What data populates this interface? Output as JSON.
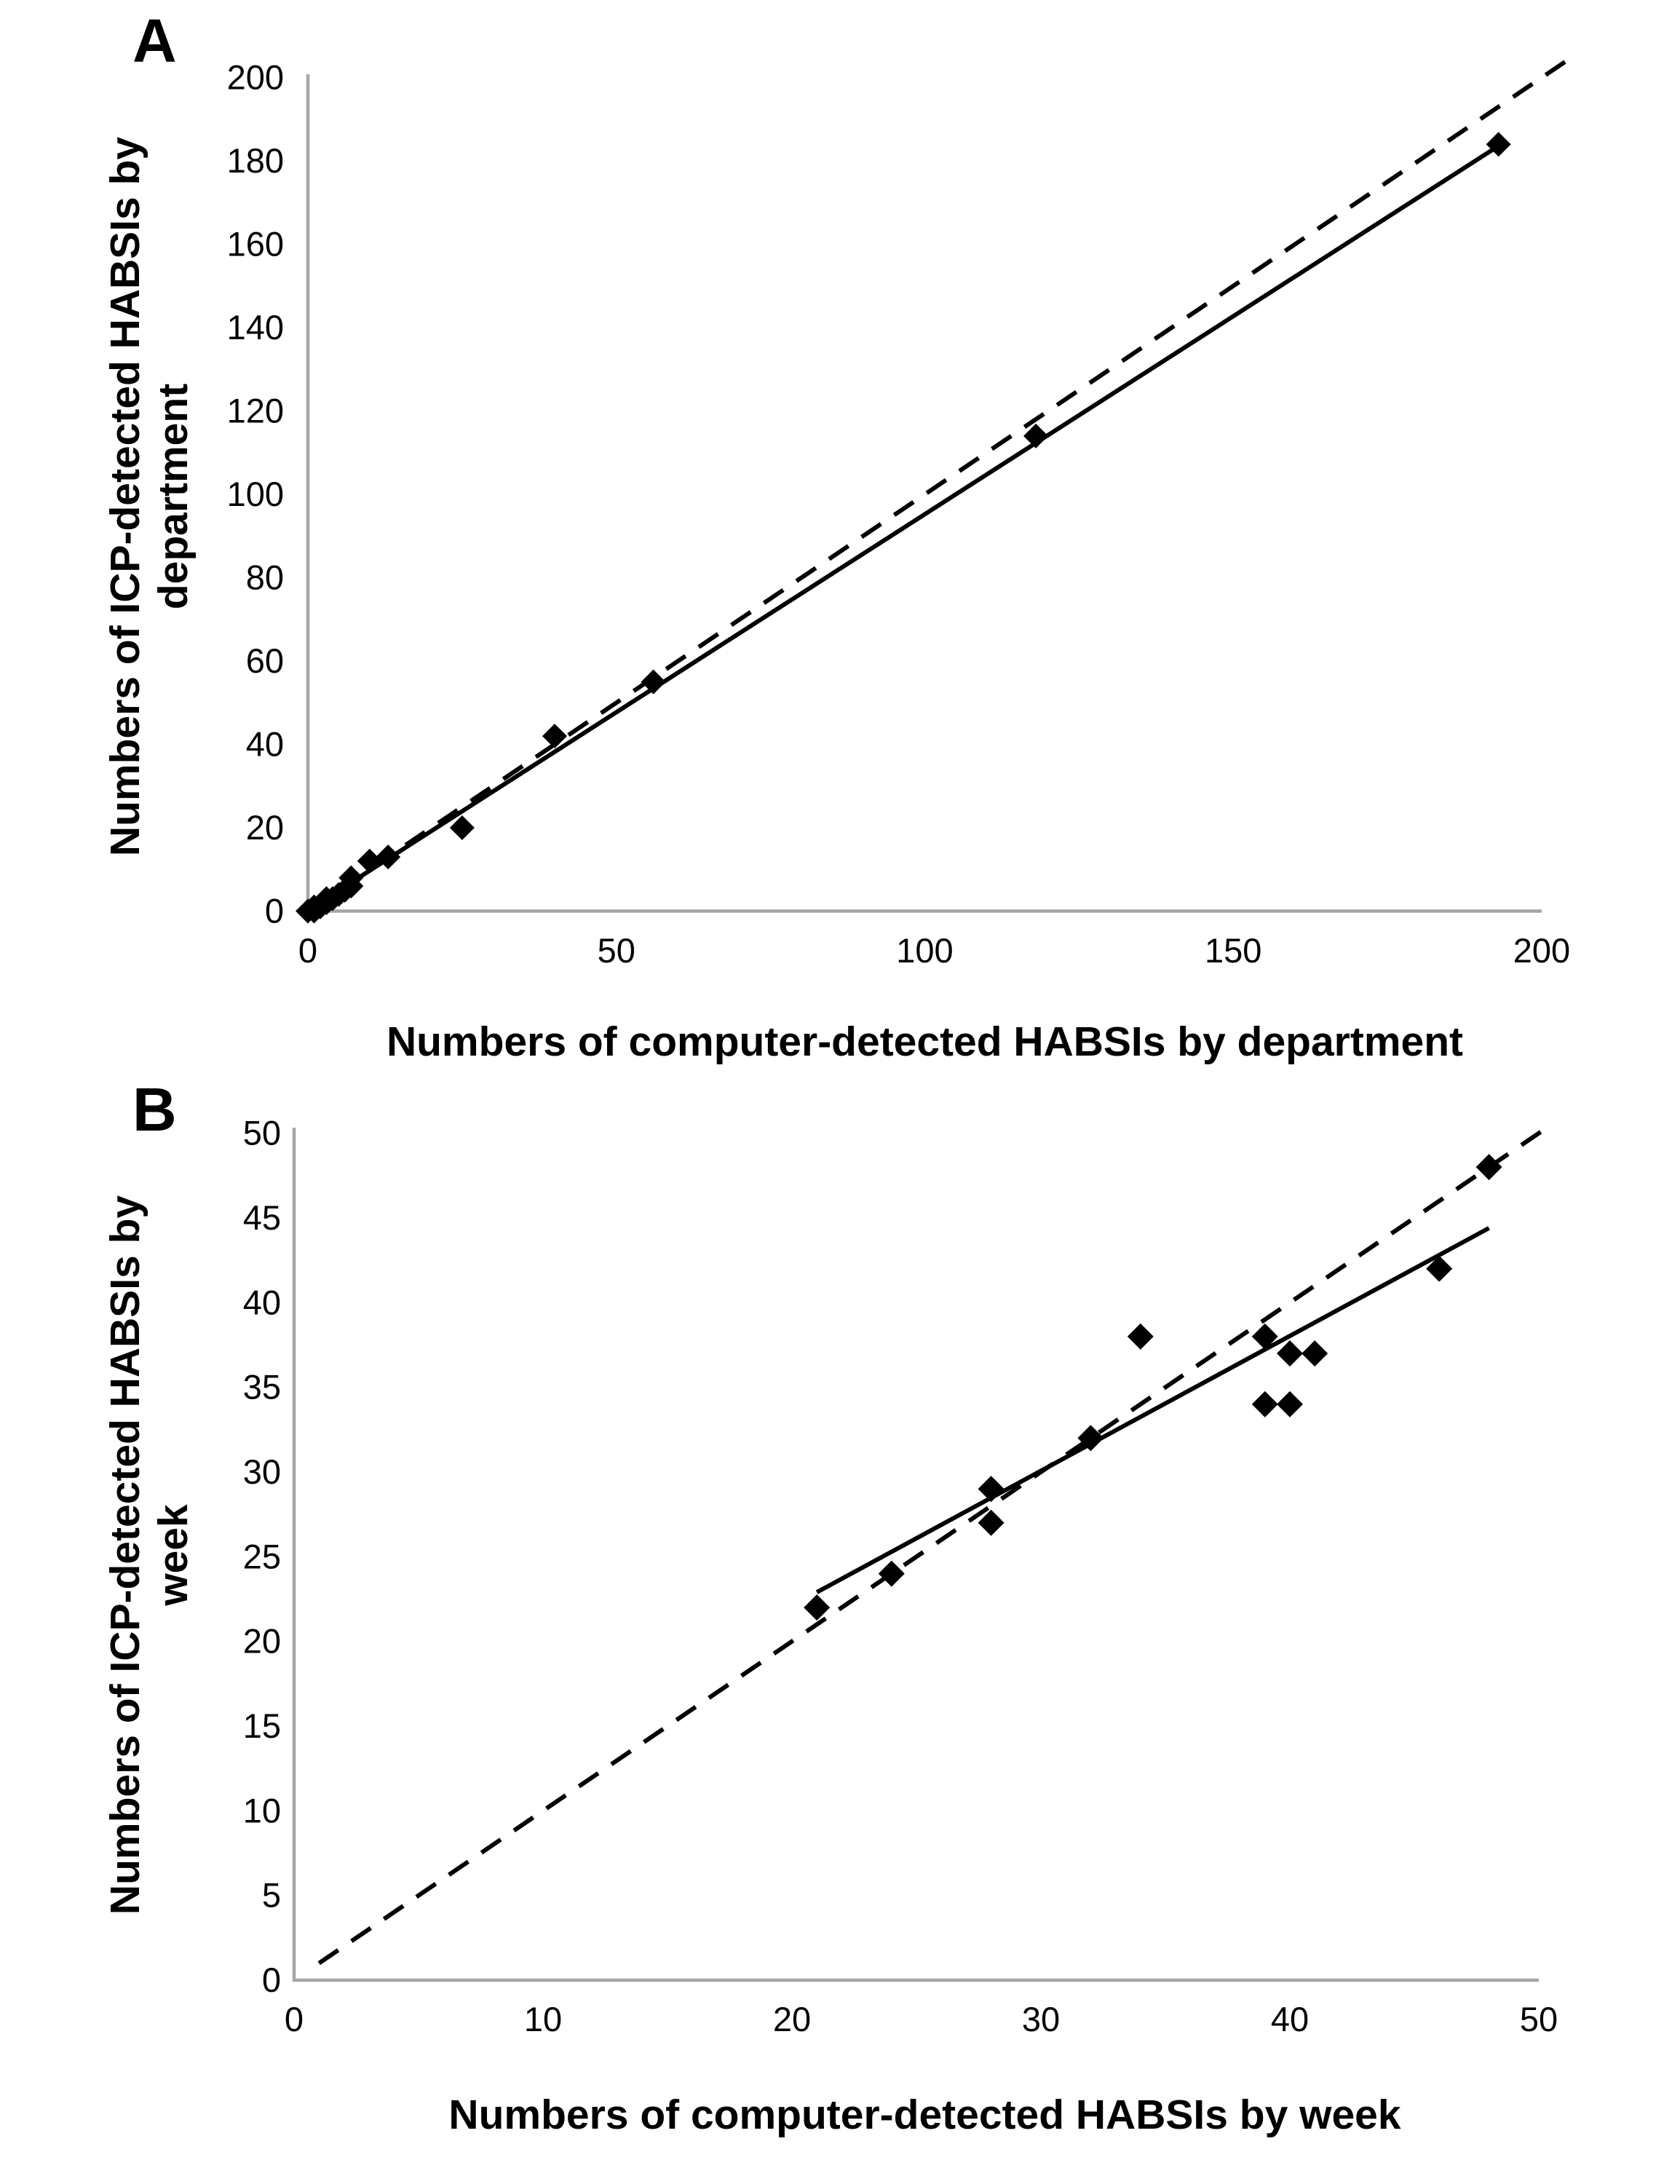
{
  "figure": {
    "background": "#ffffff",
    "axis_color": "#a6a6a6",
    "marker_color": "#000000",
    "line_color": "#000000"
  },
  "chart_data": [
    {
      "type": "scatter",
      "panel_label": "A",
      "xlabel": "Numbers of computer-detected HABSIs by department",
      "ylabel": "Numbers of ICP-detected HABSIs by department",
      "ylabel_lines": [
        "Numbers of ICP-detected HABSIs by",
        "department"
      ],
      "xlim": [
        0,
        200
      ],
      "ylim": [
        0,
        200
      ],
      "xticks": [
        0,
        50,
        100,
        150,
        200
      ],
      "yticks": [
        0,
        20,
        40,
        60,
        80,
        100,
        120,
        140,
        160,
        180,
        200
      ],
      "grid": false,
      "legend": null,
      "marker": "diamond",
      "points": [
        [
          0,
          0
        ],
        [
          1,
          0
        ],
        [
          1,
          1
        ],
        [
          2,
          1
        ],
        [
          3,
          2
        ],
        [
          3,
          3
        ],
        [
          4,
          3
        ],
        [
          5,
          4
        ],
        [
          6,
          5
        ],
        [
          7,
          6
        ],
        [
          7,
          8
        ],
        [
          10,
          12
        ],
        [
          13,
          13
        ],
        [
          25,
          20
        ],
        [
          40,
          42
        ],
        [
          56,
          55
        ],
        [
          118,
          114
        ],
        [
          193,
          184
        ]
      ],
      "identity_line": {
        "style": "dashed",
        "from": [
          0,
          0
        ],
        "to": [
          204,
          204
        ]
      },
      "fit_line": {
        "style": "solid",
        "from": [
          2,
          2.1
        ],
        "to": [
          193,
          183.6
        ]
      }
    },
    {
      "type": "scatter",
      "panel_label": "B",
      "xlabel": "Numbers of computer-detected HABSIs by week",
      "ylabel": "Numbers of ICP-detected HABSIs by week",
      "ylabel_lines": [
        "Numbers of ICP-detected HABSIs by",
        "week"
      ],
      "xlim": [
        0,
        50
      ],
      "ylim": [
        0,
        50
      ],
      "xticks": [
        0,
        10,
        20,
        30,
        40,
        50
      ],
      "yticks": [
        0,
        5,
        10,
        15,
        20,
        25,
        30,
        35,
        40,
        45,
        50
      ],
      "grid": false,
      "legend": null,
      "marker": "diamond",
      "points": [
        [
          21,
          22
        ],
        [
          24,
          24
        ],
        [
          28,
          27
        ],
        [
          28,
          29
        ],
        [
          32,
          32
        ],
        [
          34,
          38
        ],
        [
          39,
          34
        ],
        [
          39,
          38
        ],
        [
          40,
          34
        ],
        [
          40,
          37
        ],
        [
          41,
          37
        ],
        [
          46,
          42
        ],
        [
          48,
          48
        ]
      ],
      "identity_line": {
        "style": "dashed",
        "from": [
          1,
          1
        ],
        "to": [
          50.5,
          50.5
        ]
      },
      "fit_line": {
        "style": "solid",
        "from": [
          21,
          22.9
        ],
        "to": [
          48,
          44.4
        ]
      }
    }
  ]
}
